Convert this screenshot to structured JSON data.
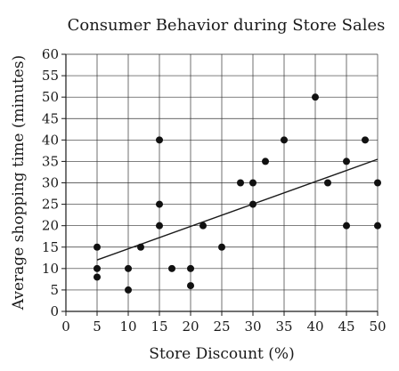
{
  "chart_data": {
    "type": "scatter",
    "title": "Consumer Behavior during Store Sales",
    "xlabel": "Store Discount (%)",
    "ylabel": "Average shopping time (minutes)",
    "xlim": [
      0,
      50
    ],
    "ylim": [
      0,
      60
    ],
    "x_ticks": [
      0,
      5,
      10,
      15,
      20,
      25,
      30,
      35,
      40,
      45,
      50
    ],
    "y_ticks": [
      0,
      5,
      10,
      15,
      20,
      25,
      30,
      35,
      40,
      45,
      50,
      55,
      60
    ],
    "grid": true,
    "points": [
      {
        "x": 5,
        "y": 15
      },
      {
        "x": 5,
        "y": 10
      },
      {
        "x": 5,
        "y": 8
      },
      {
        "x": 10,
        "y": 10
      },
      {
        "x": 10,
        "y": 5
      },
      {
        "x": 12,
        "y": 15
      },
      {
        "x": 15,
        "y": 40
      },
      {
        "x": 15,
        "y": 25
      },
      {
        "x": 15,
        "y": 20
      },
      {
        "x": 17,
        "y": 10
      },
      {
        "x": 20,
        "y": 10
      },
      {
        "x": 20,
        "y": 6
      },
      {
        "x": 22,
        "y": 20
      },
      {
        "x": 25,
        "y": 15
      },
      {
        "x": 28,
        "y": 30
      },
      {
        "x": 30,
        "y": 30
      },
      {
        "x": 30,
        "y": 25
      },
      {
        "x": 32,
        "y": 35
      },
      {
        "x": 35,
        "y": 40
      },
      {
        "x": 40,
        "y": 50
      },
      {
        "x": 42,
        "y": 30
      },
      {
        "x": 45,
        "y": 35
      },
      {
        "x": 45,
        "y": 20
      },
      {
        "x": 48,
        "y": 40
      },
      {
        "x": 50,
        "y": 30
      },
      {
        "x": 50,
        "y": 20
      }
    ],
    "trend_line": {
      "x": [
        5,
        50
      ],
      "y": [
        12,
        35.5
      ]
    }
  }
}
